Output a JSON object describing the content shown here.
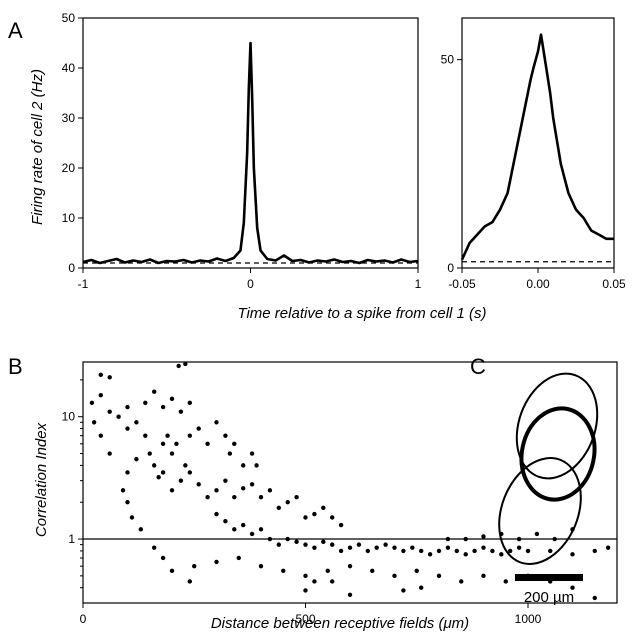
{
  "chart_data": [
    {
      "panel": "A",
      "type": "line",
      "xlabel": "Time relative to a spike from cell 1 (s)",
      "ylabel": "Firing rate of cell 2 (Hz)",
      "xlim": [
        -1,
        1
      ],
      "ylim": [
        0,
        50
      ],
      "xticks": [
        "-1",
        "0",
        "1"
      ],
      "yticks": [
        "0",
        "10",
        "20",
        "30",
        "40",
        "50"
      ],
      "series": [
        {
          "style": "solid",
          "x": [
            -1,
            -0.95,
            -0.9,
            -0.85,
            -0.8,
            -0.75,
            -0.7,
            -0.65,
            -0.6,
            -0.55,
            -0.5,
            -0.45,
            -0.4,
            -0.35,
            -0.3,
            -0.25,
            -0.2,
            -0.15,
            -0.1,
            -0.06,
            -0.04,
            -0.02,
            -0.01,
            0,
            0.01,
            0.02,
            0.04,
            0.06,
            0.1,
            0.15,
            0.2,
            0.25,
            0.3,
            0.35,
            0.4,
            0.45,
            0.5,
            0.55,
            0.6,
            0.65,
            0.7,
            0.75,
            0.8,
            0.85,
            0.9,
            0.95,
            1
          ],
          "y": [
            1.2,
            1.6,
            1.0,
            1.4,
            1.8,
            1.1,
            1.5,
            1.2,
            1.7,
            1.0,
            1.4,
            1.3,
            1.6,
            1.1,
            1.5,
            1.3,
            1.9,
            1.4,
            2.0,
            3.5,
            9,
            23,
            36,
            45,
            34,
            20,
            8,
            3.5,
            1.8,
            1.5,
            2.5,
            1.4,
            1.6,
            1.1,
            1.5,
            1.3,
            1.7,
            1.2,
            1.4,
            1.0,
            1.6,
            1.3,
            1.5,
            1.1,
            1.7,
            1.2,
            1.4
          ]
        },
        {
          "style": "dashed",
          "x": [
            -1,
            1
          ],
          "y": [
            1.0,
            1.0
          ]
        }
      ]
    },
    {
      "panel": "A-inset",
      "type": "line",
      "xlim": [
        -0.05,
        0.05
      ],
      "ylim": [
        0,
        60
      ],
      "xticks": [
        "-0.05",
        "0.00",
        "0.05"
      ],
      "yticks": [
        "0",
        "50"
      ],
      "series": [
        {
          "style": "solid",
          "x": [
            -0.05,
            -0.045,
            -0.04,
            -0.035,
            -0.03,
            -0.025,
            -0.02,
            -0.015,
            -0.01,
            -0.005,
            -0.003,
            0,
            0.002,
            0.005,
            0.008,
            0.01,
            0.015,
            0.02,
            0.025,
            0.03,
            0.035,
            0.04,
            0.045,
            0.05
          ],
          "y": [
            2,
            6,
            8,
            10,
            11,
            14,
            18,
            27,
            36,
            45,
            48,
            52,
            56,
            49,
            42,
            36,
            25,
            18,
            14,
            12,
            9,
            8,
            7,
            7
          ]
        },
        {
          "style": "dashed",
          "x": [
            -0.05,
            0.05
          ],
          "y": [
            1.5,
            1.5
          ]
        }
      ]
    },
    {
      "panel": "B",
      "type": "scatter",
      "xlabel": "Distance between receptive fields (μm)",
      "ylabel": "Correlation Index",
      "xlim": [
        0,
        1200
      ],
      "ylim": [
        0.3,
        28
      ],
      "log_y": true,
      "reference_line_y": 1,
      "xticks": [
        "0",
        "500",
        "1000"
      ],
      "yticks": [
        "1",
        "10"
      ],
      "points": [
        [
          40,
          22
        ],
        [
          60,
          21
        ],
        [
          230,
          27
        ],
        [
          215,
          26
        ],
        [
          20,
          13
        ],
        [
          25,
          9
        ],
        [
          40,
          7
        ],
        [
          60,
          11
        ],
        [
          80,
          10
        ],
        [
          100,
          12
        ],
        [
          120,
          9
        ],
        [
          140,
          13
        ],
        [
          160,
          16
        ],
        [
          180,
          12
        ],
        [
          200,
          14
        ],
        [
          220,
          11
        ],
        [
          240,
          13
        ],
        [
          180,
          6
        ],
        [
          190,
          7
        ],
        [
          200,
          5
        ],
        [
          210,
          6
        ],
        [
          230,
          4
        ],
        [
          240,
          7
        ],
        [
          260,
          8
        ],
        [
          280,
          6
        ],
        [
          300,
          9
        ],
        [
          320,
          7
        ],
        [
          330,
          5
        ],
        [
          340,
          6
        ],
        [
          360,
          4
        ],
        [
          380,
          5
        ],
        [
          390,
          4
        ],
        [
          150,
          5
        ],
        [
          160,
          4
        ],
        [
          170,
          3.2
        ],
        [
          180,
          3.5
        ],
        [
          200,
          2.5
        ],
        [
          220,
          3
        ],
        [
          240,
          3.5
        ],
        [
          260,
          2.8
        ],
        [
          280,
          2.2
        ],
        [
          300,
          2.5
        ],
        [
          320,
          3
        ],
        [
          340,
          2.2
        ],
        [
          360,
          2.6
        ],
        [
          380,
          2.8
        ],
        [
          400,
          2.2
        ],
        [
          420,
          2.5
        ],
        [
          440,
          1.8
        ],
        [
          460,
          2
        ],
        [
          480,
          2.2
        ],
        [
          500,
          1.5
        ],
        [
          520,
          1.6
        ],
        [
          540,
          1.8
        ],
        [
          560,
          1.5
        ],
        [
          580,
          1.3
        ],
        [
          300,
          1.6
        ],
        [
          320,
          1.4
        ],
        [
          340,
          1.2
        ],
        [
          360,
          1.3
        ],
        [
          380,
          1.1
        ],
        [
          400,
          1.2
        ],
        [
          420,
          1.0
        ],
        [
          440,
          0.9
        ],
        [
          460,
          1.0
        ],
        [
          480,
          0.95
        ],
        [
          500,
          0.9
        ],
        [
          520,
          0.85
        ],
        [
          540,
          0.95
        ],
        [
          560,
          0.9
        ],
        [
          580,
          0.8
        ],
        [
          600,
          0.85
        ],
        [
          620,
          0.9
        ],
        [
          640,
          0.8
        ],
        [
          660,
          0.85
        ],
        [
          680,
          0.9
        ],
        [
          700,
          0.85
        ],
        [
          720,
          0.8
        ],
        [
          740,
          0.85
        ],
        [
          760,
          0.8
        ],
        [
          780,
          0.75
        ],
        [
          800,
          0.8
        ],
        [
          820,
          0.85
        ],
        [
          840,
          0.8
        ],
        [
          860,
          0.75
        ],
        [
          880,
          0.8
        ],
        [
          900,
          0.85
        ],
        [
          920,
          0.8
        ],
        [
          940,
          0.75
        ],
        [
          960,
          0.8
        ],
        [
          980,
          0.85
        ],
        [
          1000,
          0.8
        ],
        [
          1050,
          0.8
        ],
        [
          1100,
          0.75
        ],
        [
          1150,
          0.8
        ],
        [
          1180,
          0.85
        ],
        [
          820,
          1.0
        ],
        [
          860,
          1.0
        ],
        [
          900,
          1.05
        ],
        [
          940,
          1.1
        ],
        [
          980,
          1.0
        ],
        [
          1020,
          1.1
        ],
        [
          1060,
          1.0
        ],
        [
          1100,
          1.2
        ],
        [
          250,
          0.6
        ],
        [
          300,
          0.65
        ],
        [
          350,
          0.7
        ],
        [
          400,
          0.6
        ],
        [
          450,
          0.55
        ],
        [
          500,
          0.5
        ],
        [
          550,
          0.55
        ],
        [
          600,
          0.6
        ],
        [
          650,
          0.55
        ],
        [
          700,
          0.5
        ],
        [
          750,
          0.55
        ],
        [
          800,
          0.5
        ],
        [
          850,
          0.45
        ],
        [
          900,
          0.5
        ],
        [
          950,
          0.45
        ],
        [
          1000,
          0.5
        ],
        [
          1050,
          0.45
        ],
        [
          1100,
          0.4
        ],
        [
          1150,
          0.33
        ],
        [
          500,
          0.38
        ],
        [
          520,
          0.45
        ],
        [
          560,
          0.45
        ],
        [
          600,
          0.35
        ],
        [
          720,
          0.38
        ],
        [
          760,
          0.4
        ],
        [
          240,
          0.45
        ],
        [
          200,
          0.55
        ],
        [
          180,
          0.7
        ],
        [
          160,
          0.85
        ],
        [
          130,
          1.2
        ],
        [
          110,
          1.5
        ],
        [
          100,
          2.0
        ],
        [
          90,
          2.5
        ],
        [
          100,
          3.5
        ],
        [
          120,
          4.5
        ],
        [
          60,
          5
        ],
        [
          140,
          7
        ],
        [
          100,
          8
        ],
        [
          40,
          15
        ]
      ]
    },
    {
      "panel": "C",
      "type": "diagram",
      "scale_label": "200 µm"
    }
  ],
  "panel_labels": {
    "a": "A",
    "b": "B",
    "c": "C"
  }
}
